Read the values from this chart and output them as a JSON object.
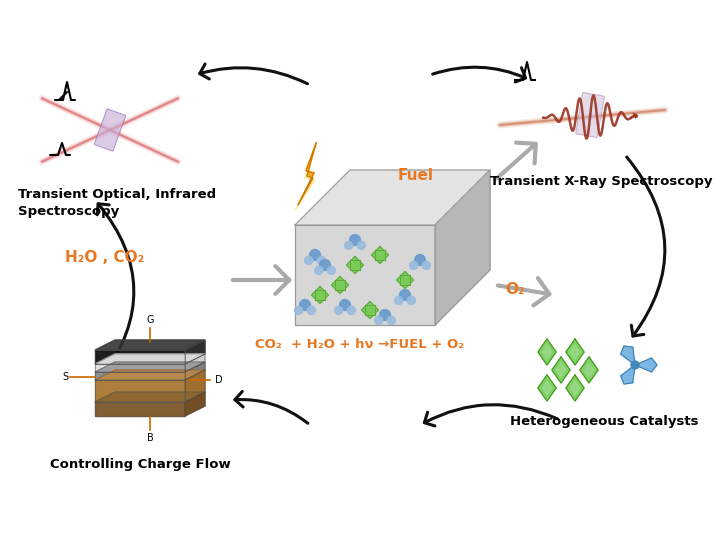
{
  "bg_color": "#ffffff",
  "orange_color": "#E87722",
  "arrow_color": "#111111",
  "gray_arrow_color": "#aaaaaa",
  "label_transient_optical": "Transient Optical, Infrared\nSpectroscopy",
  "label_transient_xray": "Transient X-Ray Spectroscopy",
  "label_h2o_co2": "H₂O , CO₂",
  "label_o2": "O₂",
  "label_fuel": "Fuel",
  "label_reaction": "CO₂  + H₂O + hν →FUEL + O₂",
  "label_charge": "Controlling Charge Flow",
  "label_catalysts": "Heterogeneous Catalysts",
  "figsize": [
    7.2,
    5.4
  ],
  "dpi": 100
}
